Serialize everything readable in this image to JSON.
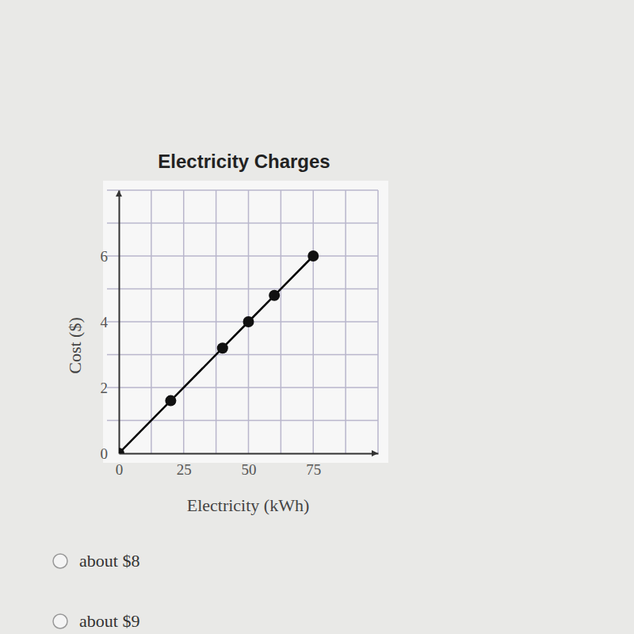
{
  "chart_data": {
    "type": "line",
    "title": "Electricity Charges",
    "x_label": "Electricity (kWh)",
    "y_label": "Cost ($)",
    "x": [
      0,
      20,
      40,
      50,
      60,
      75
    ],
    "values": [
      0,
      1.6,
      3.2,
      4,
      4.8,
      6
    ],
    "color": "#000000",
    "marker": "circle",
    "xlim": [
      0,
      100
    ],
    "ylim": [
      0,
      8
    ],
    "xticks": [
      0,
      25,
      50,
      75
    ],
    "yticks": [
      0,
      2,
      4,
      6
    ],
    "grid": true
  },
  "choices": [
    "about $8",
    "about $9"
  ]
}
